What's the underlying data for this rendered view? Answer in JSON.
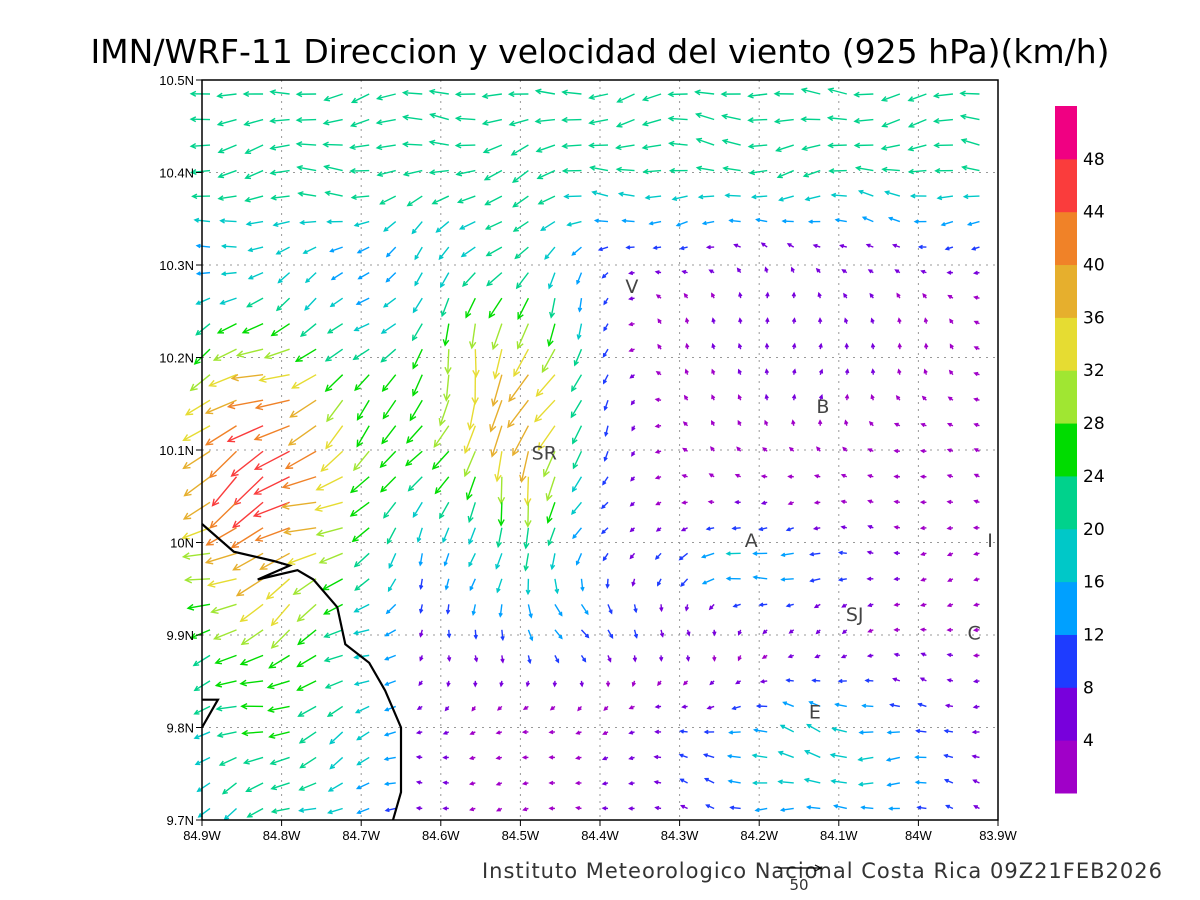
{
  "title": "IMN/WRF-11 Direccion y velocidad del viento (925 hPa)(km/h)",
  "credit": "Instituto Meteorologico Nacional Costa Rica  09Z21FEB2026",
  "reference_vector": {
    "label": "50",
    "value": 50
  },
  "map": {
    "x_ticks": [
      "84.9W",
      "84.8W",
      "84.7W",
      "84.6W",
      "84.5W",
      "84.4W",
      "84.3W",
      "84.2W",
      "84.1W",
      "84W",
      "83.9W"
    ],
    "y_ticks": [
      "10.5N",
      "10.4N",
      "10.3N",
      "10.2N",
      "10.1N",
      "10N",
      "9.9N",
      "9.8N",
      "9.7N"
    ],
    "lon_range": [
      -84.9,
      -83.9
    ],
    "lat_range": [
      9.7,
      10.5
    ],
    "grid": true,
    "places": [
      {
        "label": "V",
        "lon": -84.36,
        "lat": 10.27
      },
      {
        "label": "B",
        "lon": -84.12,
        "lat": 10.14
      },
      {
        "label": "SR",
        "lon": -84.47,
        "lat": 10.09
      },
      {
        "label": "A",
        "lon": -84.21,
        "lat": 9.995
      },
      {
        "label": "I",
        "lon": -83.91,
        "lat": 9.995
      },
      {
        "label": "SJ",
        "lon": -84.08,
        "lat": 9.915
      },
      {
        "label": "C",
        "lon": -83.93,
        "lat": 9.895
      },
      {
        "label": "E",
        "lon": -84.13,
        "lat": 9.81
      }
    ],
    "coastline": [
      [
        -84.9,
        10.02
      ],
      [
        -84.86,
        9.99
      ],
      [
        -84.81,
        9.98
      ],
      [
        -84.79,
        9.975
      ],
      [
        -84.83,
        9.96
      ],
      [
        -84.78,
        9.97
      ],
      [
        -84.76,
        9.96
      ],
      [
        -84.73,
        9.93
      ],
      [
        -84.72,
        9.89
      ],
      [
        -84.69,
        9.87
      ],
      [
        -84.67,
        9.84
      ],
      [
        -84.65,
        9.8
      ],
      [
        -84.65,
        9.73
      ],
      [
        -84.66,
        9.7
      ]
    ],
    "coastline2": [
      [
        -84.9,
        9.83
      ],
      [
        -84.88,
        9.83
      ],
      [
        -84.9,
        9.8
      ]
    ]
  },
  "colorbar": {
    "labels": [
      "4",
      "8",
      "12",
      "16",
      "20",
      "24",
      "28",
      "32",
      "36",
      "40",
      "44",
      "48"
    ],
    "colors": [
      "#a000c8",
      "#7800dc",
      "#1e3cff",
      "#00a0ff",
      "#00c8c8",
      "#00d28c",
      "#00dc00",
      "#a0e632",
      "#e6dc32",
      "#e6af2d",
      "#f08228",
      "#fa3c3c",
      "#f00082"
    ]
  }
}
